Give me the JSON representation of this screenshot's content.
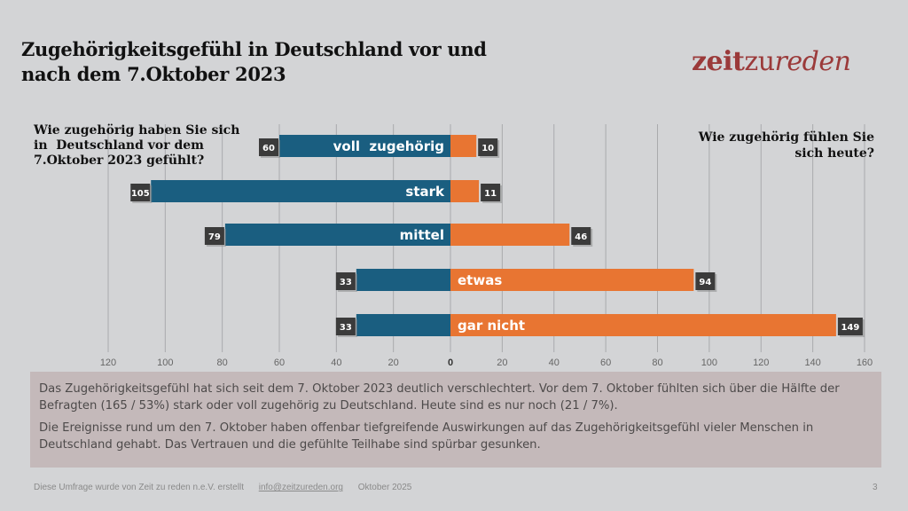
{
  "header": {
    "title_line1": "Zugehörigkeitsgefühl in Deutschland vor und",
    "title_line2": "nach dem 7.Oktober 2023",
    "logo_part1": "zeit",
    "logo_part2": "zu",
    "logo_part3": "reden"
  },
  "questions": {
    "left_line1": "Wie zugehörig haben Sie sich",
    "left_line2": "in  Deutschland vor dem",
    "left_line3": "7.Oktober 2023 gefühlt?",
    "right_line1": "Wie zugehörig fühlen Sie",
    "right_line2": "sich heute?"
  },
  "colors": {
    "before": "#1a5e80",
    "after": "#e87532",
    "label_box": "#3b3b3b",
    "grid": "#a9aaad",
    "background": "#d3d4d6"
  },
  "chart_data": {
    "type": "bar",
    "orientation": "horizontal-diverging",
    "categories": [
      "voll  zugehörig",
      "stark",
      "mittel",
      "etwas",
      "gar nicht"
    ],
    "series": [
      {
        "name": "vor dem 7. Oktober 2023",
        "side": "left",
        "values": [
          60,
          105,
          79,
          33,
          33
        ]
      },
      {
        "name": "heute",
        "side": "right",
        "values": [
          10,
          11,
          46,
          94,
          149
        ]
      }
    ],
    "x_ticks_left": [
      "120",
      "100",
      "80",
      "60",
      "40",
      "20"
    ],
    "x_ticks_right": [
      "0",
      "20",
      "40",
      "60",
      "80",
      "100",
      "120",
      "140",
      "160"
    ],
    "xlim_left": [
      0,
      120
    ],
    "xlim_right": [
      0,
      160
    ],
    "grid": true,
    "title": "Zugehörigkeitsgefühl in Deutschland vor und nach dem 7.Oktober 2023"
  },
  "note": {
    "paragraph1": "Das Zugehörigkeitsgefühl hat sich seit dem 7. Oktober 2023 deutlich verschlechtert. Vor dem 7. Oktober fühlten sich über die Hälfte der Befragten (165 / 53%) stark oder voll zugehörig zu Deutschland. Heute sind es nur noch (21 / 7%).",
    "paragraph2": "Die Ereignisse rund um den 7. Oktober haben offenbar tiefgreifende Auswirkungen auf das Zugehörigkeitsgefühl vieler Menschen in Deutschland gehabt. Das Vertrauen und die gefühlte Teilhabe sind spürbar gesunken."
  },
  "footer": {
    "credit": "Diese Umfrage wurde von Zeit zu reden n.e.V. erstellt",
    "email": "info@zeitzureden.org",
    "date": "Oktober 2025",
    "page_number": "3"
  }
}
